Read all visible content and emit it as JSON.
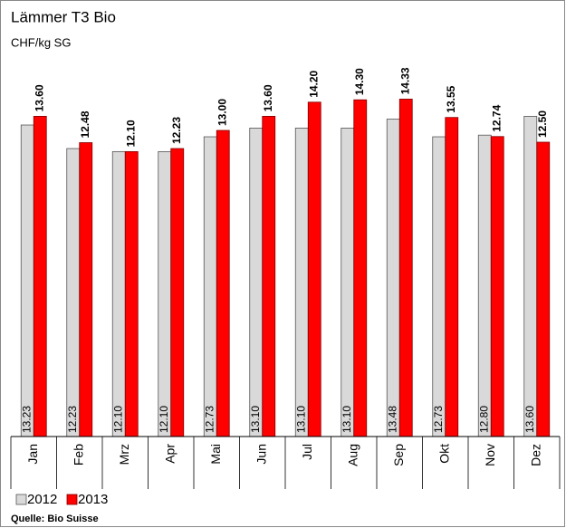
{
  "chart_data": {
    "type": "bar",
    "title": "Lämmer T3 Bio",
    "subtitle": "CHF/kg SG",
    "source": "Quelle: Bio Suisse",
    "categories": [
      "Jan",
      "Feb",
      "Mrz",
      "Apr",
      "Mai",
      "Jun",
      "Jul",
      "Aug",
      "Sep",
      "Okt",
      "Nov",
      "Dez"
    ],
    "series": [
      {
        "name": "2012",
        "color": "#d9d9d9",
        "values": [
          13.23,
          12.23,
          12.1,
          12.1,
          12.73,
          13.1,
          13.1,
          13.1,
          13.48,
          12.73,
          12.8,
          13.6
        ],
        "value_labels": [
          "13.23",
          "12.23",
          "12.10",
          "12.10",
          "12.73",
          "13.10",
          "13.10",
          "13.10",
          "13.48",
          "12.73",
          "12.80",
          "13.60"
        ]
      },
      {
        "name": "2013",
        "color": "#ff0000",
        "values": [
          13.6,
          12.48,
          12.1,
          12.23,
          13.0,
          13.6,
          14.2,
          14.3,
          14.33,
          13.55,
          12.74,
          12.5
        ],
        "value_labels": [
          "13.60",
          "12.48",
          "12.10",
          "12.23",
          "13.00",
          "13.60",
          "14.20",
          "14.30",
          "14.33",
          "13.55",
          "12.74",
          "12.50"
        ]
      }
    ],
    "ylim": [
      0,
      16
    ]
  }
}
